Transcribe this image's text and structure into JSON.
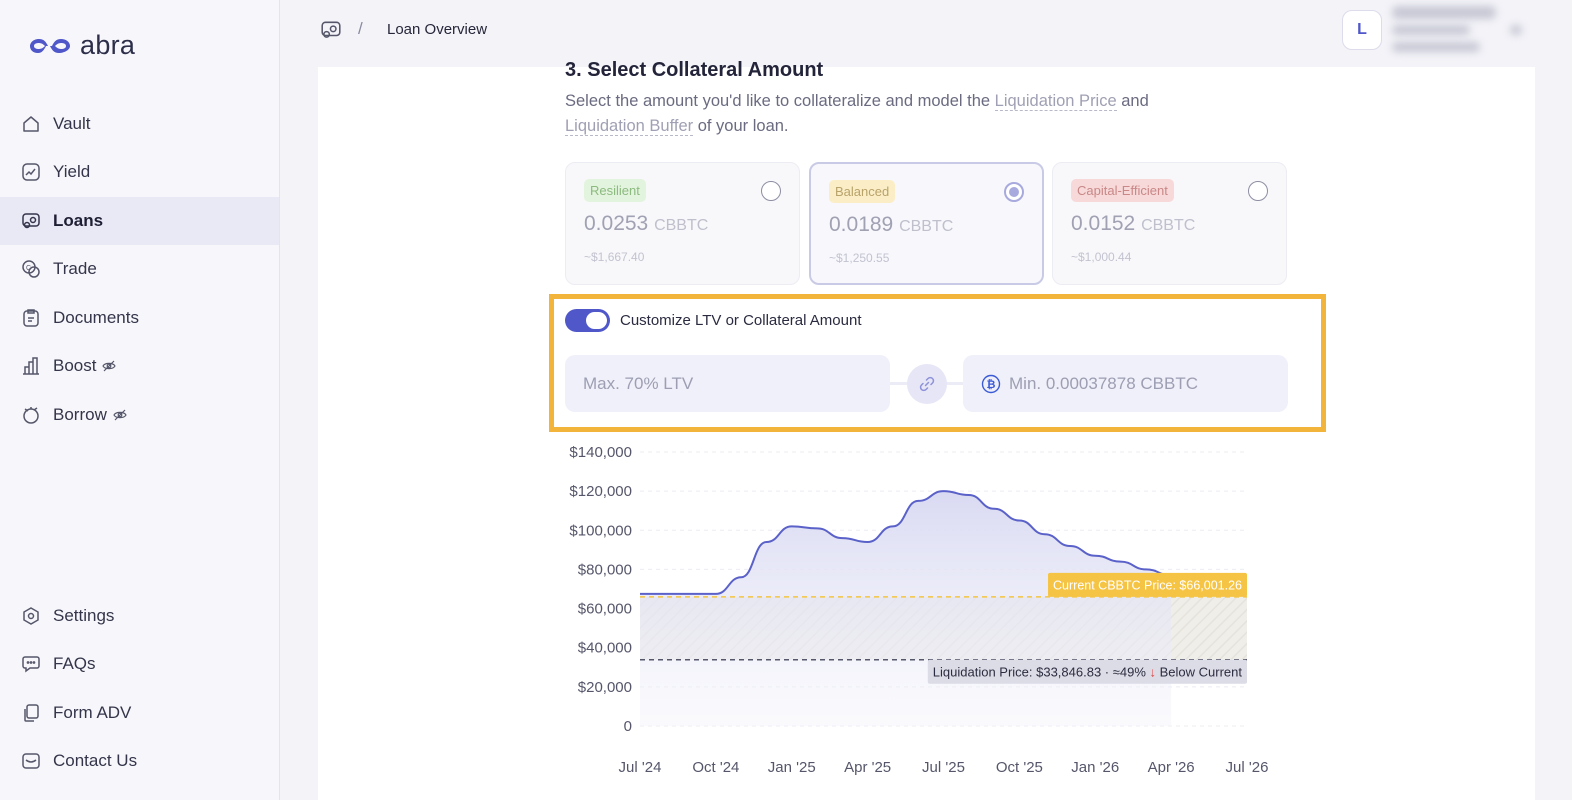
{
  "brand": {
    "name": "abra"
  },
  "sidebar": {
    "items": [
      {
        "label": "Vault",
        "icon": "home-icon"
      },
      {
        "label": "Yield",
        "icon": "trending-icon"
      },
      {
        "label": "Loans",
        "icon": "loan-icon",
        "active": true
      },
      {
        "label": "Trade",
        "icon": "trade-icon"
      },
      {
        "label": "Documents",
        "icon": "clipboard-icon"
      },
      {
        "label": "Boost",
        "icon": "bar-chart-icon",
        "hidden_badge": "eye-off-icon"
      },
      {
        "label": "Borrow",
        "icon": "borrow-icon",
        "hidden_badge": "eye-off-icon"
      }
    ],
    "bottom_items": [
      {
        "label": "Settings",
        "icon": "settings-icon"
      },
      {
        "label": "FAQs",
        "icon": "chat-icon"
      },
      {
        "label": "Form ADV",
        "icon": "pages-icon"
      },
      {
        "label": "Contact Us",
        "icon": "mail-icon"
      }
    ]
  },
  "header": {
    "breadcrumb_icon": "loan-icon",
    "separator": "/",
    "title": "Loan Overview",
    "avatar_initial": "L"
  },
  "step": {
    "title": "3. Select Collateral Amount",
    "desc_before": "Select the amount you'd like to collateralize and model the ",
    "link1": "Liquidation Price",
    "desc_mid": " and ",
    "link2": "Liquidation Buffer",
    "desc_after": " of your loan."
  },
  "plans": [
    {
      "badge": "Resilient",
      "amount": "0.0253",
      "unit": "CBBTC",
      "usd": "~$1,667.40",
      "selected": false,
      "badge_bg": "#e3f4de",
      "badge_color": "#8cba7f"
    },
    {
      "badge": "Balanced",
      "amount": "0.0189",
      "unit": "CBBTC",
      "usd": "~$1,250.55",
      "selected": true,
      "badge_bg": "#fbeec7",
      "badge_color": "#b8a36a"
    },
    {
      "badge": "Capital-Efficient",
      "amount": "0.0152",
      "unit": "CBBTC",
      "usd": "~$1,000.44",
      "selected": false,
      "badge_bg": "#f7d9d9",
      "badge_color": "#c98787"
    }
  ],
  "customize": {
    "label": "Customize LTV or Collateral Amount",
    "enabled": true,
    "ltv_placeholder": "Max. 70% LTV",
    "collateral_placeholder": "Min. 0.00037878 CBBTC"
  },
  "chart_data": {
    "type": "area",
    "x_ticks": [
      "Jul '24",
      "Oct '24",
      "Jan '25",
      "Apr '25",
      "Jul '25",
      "Oct '25",
      "Jan '26",
      "Apr '26",
      "Jul '26"
    ],
    "y_ticks": [
      "$140,000",
      "$120,000",
      "$100,000",
      "$80,000",
      "$60,000",
      "$40,000",
      "$20,000",
      "0"
    ],
    "ylim": [
      0,
      140000
    ],
    "series": [
      {
        "values": [
          {
            "x": "2024-07",
            "y": 67500
          },
          {
            "x": "2024-10",
            "y": 67500
          },
          {
            "x": "2024-11",
            "y": 76000
          },
          {
            "x": "2024-12",
            "y": 94000
          },
          {
            "x": "2025-01",
            "y": 102000
          },
          {
            "x": "2025-02",
            "y": 101000
          },
          {
            "x": "2025-03",
            "y": 96000
          },
          {
            "x": "2025-04",
            "y": 94000
          },
          {
            "x": "2025-05",
            "y": 102000
          },
          {
            "x": "2025-06",
            "y": 115000
          },
          {
            "x": "2025-07",
            "y": 120000
          },
          {
            "x": "2025-08",
            "y": 118000
          },
          {
            "x": "2025-09",
            "y": 111000
          },
          {
            "x": "2025-10",
            "y": 105000
          },
          {
            "x": "2025-11",
            "y": 98000
          },
          {
            "x": "2025-12",
            "y": 92000
          },
          {
            "x": "2026-01",
            "y": 87000
          },
          {
            "x": "2026-02",
            "y": 84000
          },
          {
            "x": "2026-03",
            "y": 80000
          },
          {
            "x": "2026-04",
            "y": 77000
          }
        ]
      }
    ],
    "reference_lines": [
      {
        "label": "Current CBBTC Price: $66,001.26",
        "y": 66001.26,
        "color": "#f4c542"
      },
      {
        "label_prefix": "Liquidation Price: $33,846.83 · ≈49% ",
        "arrow": "↓",
        "label_suffix": " Below Current",
        "y": 33846.83,
        "color": "#55566a"
      }
    ],
    "colors": {
      "line": "#5a61c8",
      "fill": "#dfe0f4",
      "buffer": "#ecebe6"
    }
  }
}
